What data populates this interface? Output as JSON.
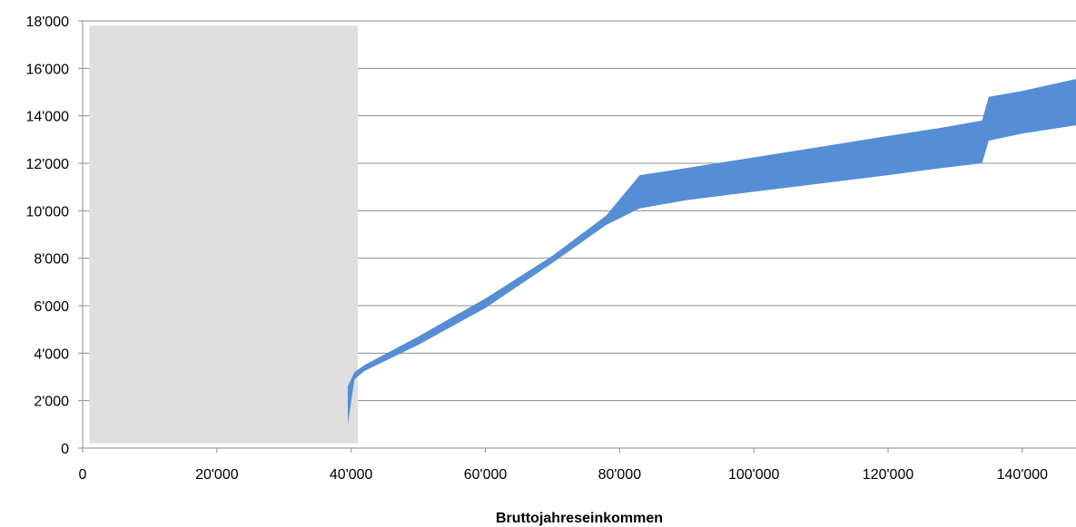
{
  "chart_data": {
    "type": "area",
    "title": "",
    "xlabel": "Bruttojahreseinkommen",
    "ylabel": "",
    "xlim": [
      0,
      148000
    ],
    "ylim": [
      0,
      18000
    ],
    "x_ticks": [
      0,
      20000,
      40000,
      60000,
      80000,
      100000,
      120000,
      140000
    ],
    "x_tick_labels": [
      "0",
      "20'000",
      "40'000",
      "60'000",
      "80'000",
      "100'000",
      "120'000",
      "140'000"
    ],
    "y_ticks": [
      0,
      2000,
      4000,
      6000,
      8000,
      10000,
      12000,
      14000,
      16000,
      18000
    ],
    "y_tick_labels": [
      "0",
      "2'000",
      "4'000",
      "6'000",
      "8'000",
      "10'000",
      "12'000",
      "14'000",
      "16'000",
      "18'000"
    ],
    "grid": true,
    "shaded_region": {
      "x": [
        1000,
        41000
      ],
      "y": [
        200,
        17800
      ],
      "color": "#dedede"
    },
    "band": {
      "color": "#558ed5",
      "upper": [
        [
          39500,
          2600
        ],
        [
          40500,
          3200
        ],
        [
          42000,
          3500
        ],
        [
          50000,
          4700
        ],
        [
          60000,
          6300
        ],
        [
          70000,
          8100
        ],
        [
          78000,
          9800
        ],
        [
          83000,
          11500
        ],
        [
          90000,
          11800
        ],
        [
          100000,
          12250
        ],
        [
          110000,
          12700
        ],
        [
          120000,
          13150
        ],
        [
          128000,
          13500
        ],
        [
          134000,
          13800
        ],
        [
          135000,
          14800
        ],
        [
          140000,
          15050
        ],
        [
          148000,
          15550
        ]
      ],
      "lower": [
        [
          148000,
          13600
        ],
        [
          140000,
          13250
        ],
        [
          135000,
          12950
        ],
        [
          134000,
          12000
        ],
        [
          128000,
          11800
        ],
        [
          120000,
          11500
        ],
        [
          110000,
          11150
        ],
        [
          100000,
          10800
        ],
        [
          90000,
          10450
        ],
        [
          83000,
          10100
        ],
        [
          78000,
          9400
        ],
        [
          70000,
          7800
        ],
        [
          60000,
          5900
        ],
        [
          50000,
          4350
        ],
        [
          42000,
          3250
        ],
        [
          40500,
          2900
        ],
        [
          39500,
          1000
        ]
      ]
    },
    "colors": {
      "band": "#558ed5",
      "shade": "#dedede",
      "grid": "#8c8c8c",
      "axis": "#8c8c8c"
    }
  }
}
